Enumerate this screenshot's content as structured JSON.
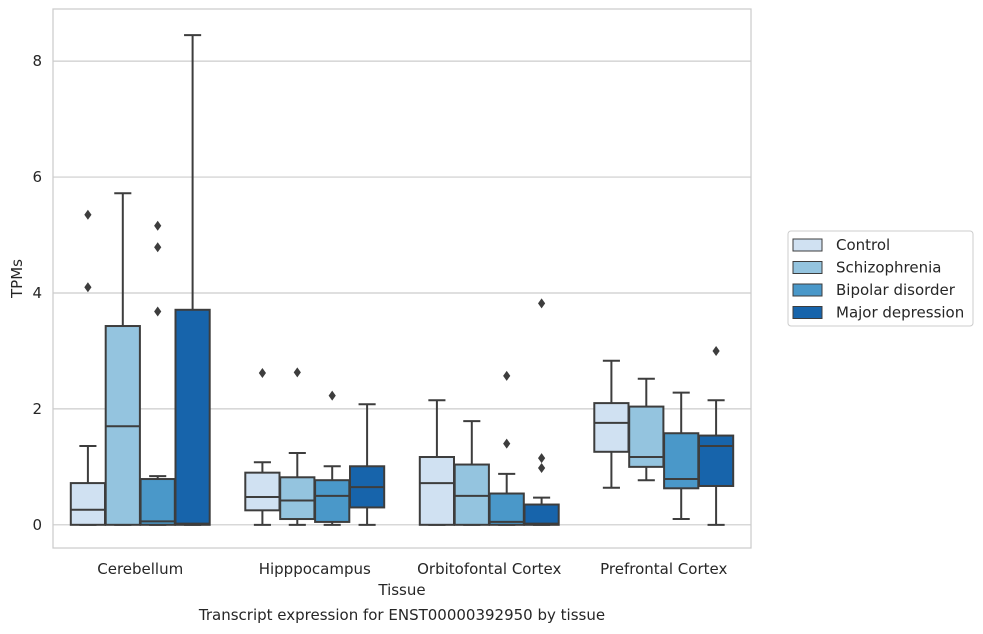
{
  "caption": "Transcript expression for ENST00000392950 by tissue",
  "chart_data": {
    "type": "box",
    "xlabel": "Tissue",
    "ylabel": "TPMs",
    "ylim": [
      -0.4,
      8.9
    ],
    "yticks": [
      0,
      2,
      4,
      6,
      8
    ],
    "grid": "horizontal",
    "legend_position": "right",
    "categories": [
      "Cerebellum",
      "Hipppocampus",
      "Orbitofontal Cortex",
      "Prefrontal Cortex"
    ],
    "series": [
      {
        "name": "Control",
        "color": "#d0e1f2",
        "boxes": [
          {
            "whislo": 0.0,
            "q1": 0.0,
            "med": 0.26,
            "q3": 0.72,
            "whishi": 1.36,
            "fliers": [
              5.35,
              4.1
            ]
          },
          {
            "whislo": 0.0,
            "q1": 0.25,
            "med": 0.48,
            "q3": 0.9,
            "whishi": 1.08,
            "fliers": [
              2.62
            ]
          },
          {
            "whislo": 0.0,
            "q1": 0.0,
            "med": 0.72,
            "q3": 1.17,
            "whishi": 2.15,
            "fliers": []
          },
          {
            "whislo": 0.64,
            "q1": 1.26,
            "med": 1.76,
            "q3": 2.1,
            "whishi": 2.83,
            "fliers": []
          }
        ]
      },
      {
        "name": "Schizophrenia",
        "color": "#94c4df",
        "boxes": [
          {
            "whislo": 0.0,
            "q1": 0.0,
            "med": 1.7,
            "q3": 3.43,
            "whishi": 5.72,
            "fliers": []
          },
          {
            "whislo": 0.0,
            "q1": 0.1,
            "med": 0.42,
            "q3": 0.82,
            "whishi": 1.24,
            "fliers": [
              2.63
            ]
          },
          {
            "whislo": 0.0,
            "q1": 0.0,
            "med": 0.5,
            "q3": 1.04,
            "whishi": 1.79,
            "fliers": []
          },
          {
            "whislo": 0.77,
            "q1": 1.0,
            "med": 1.17,
            "q3": 2.04,
            "whishi": 2.52,
            "fliers": []
          }
        ]
      },
      {
        "name": "Bipolar disorder",
        "color": "#4a98c9",
        "boxes": [
          {
            "whislo": 0.0,
            "q1": 0.0,
            "med": 0.06,
            "q3": 0.79,
            "whishi": 0.84,
            "fliers": [
              5.16,
              4.79,
              3.68
            ]
          },
          {
            "whislo": 0.0,
            "q1": 0.05,
            "med": 0.5,
            "q3": 0.77,
            "whishi": 1.01,
            "fliers": [
              2.23
            ]
          },
          {
            "whislo": 0.0,
            "q1": 0.0,
            "med": 0.05,
            "q3": 0.54,
            "whishi": 0.88,
            "fliers": [
              2.57,
              1.4
            ]
          },
          {
            "whislo": 0.1,
            "q1": 0.63,
            "med": 0.79,
            "q3": 1.58,
            "whishi": 2.28,
            "fliers": []
          }
        ]
      },
      {
        "name": "Major depression",
        "color": "#1764ab",
        "boxes": [
          {
            "whislo": 0.0,
            "q1": 0.0,
            "med": 0.02,
            "q3": 3.71,
            "whishi": 8.45,
            "fliers": []
          },
          {
            "whislo": 0.0,
            "q1": 0.3,
            "med": 0.65,
            "q3": 1.01,
            "whishi": 2.08,
            "fliers": []
          },
          {
            "whislo": 0.0,
            "q1": 0.0,
            "med": 0.02,
            "q3": 0.35,
            "whishi": 0.47,
            "fliers": [
              3.82,
              1.15,
              0.98
            ]
          },
          {
            "whislo": 0.0,
            "q1": 0.67,
            "med": 1.36,
            "q3": 1.54,
            "whishi": 2.15,
            "fliers": [
              3.0
            ]
          }
        ]
      }
    ]
  }
}
